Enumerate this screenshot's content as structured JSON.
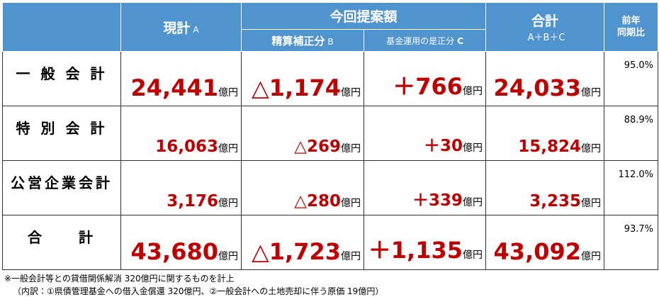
{
  "table": {
    "header": {
      "current": "現計",
      "current_sub": "A",
      "proposal": "今回提案額",
      "col_b": "精算補正分",
      "col_b_sub": "B",
      "col_c": "基金運用の是正分",
      "col_c_sub": "C",
      "total": "合計",
      "total_sub": "A＋B＋C",
      "yoy": [
        "前年",
        "同期比"
      ]
    },
    "unit": "億円",
    "rows": [
      {
        "label": "一 般 会 計",
        "a": "24,441",
        "b": "△1,174",
        "c": "＋766",
        "total": "24,033",
        "yoy": "95.0%"
      },
      {
        "label": "特 別 会 計",
        "a": "16,063",
        "b": "△269",
        "c": "＋30",
        "total": "15,824",
        "yoy": "88.9%"
      },
      {
        "label": "公営企業会計",
        "a": "3,176",
        "b": "△280",
        "c": "＋339",
        "total": "3,235",
        "yoy": "112.0%"
      },
      {
        "label": "合　　計",
        "a": "43,680",
        "b": "△1,723",
        "c": "＋1,135",
        "total": "43,092",
        "yoy": "93.7%"
      }
    ]
  },
  "notes": [
    "※一般会計等との貸借関係解消 320億円に関するものを計上",
    "（内訳：①県債管理基金への借入金償還 320億円、②一般会計への土地売却に伴う原価 19億円）"
  ]
}
